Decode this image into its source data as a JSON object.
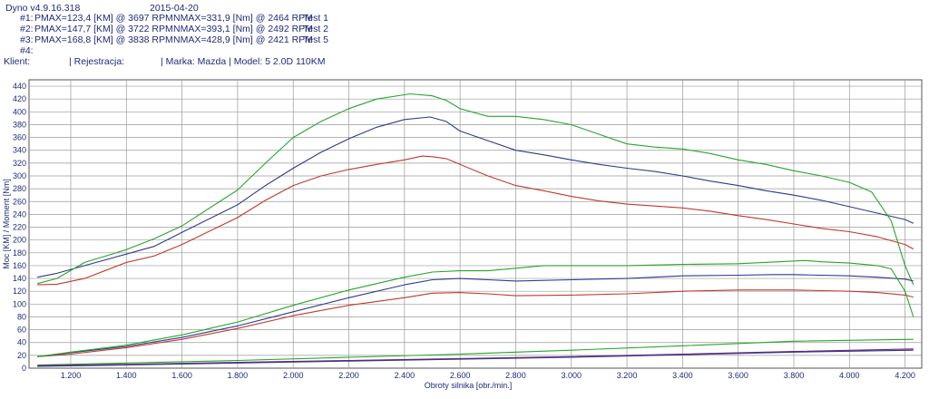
{
  "header": {
    "app": "Dyno v4.9.16.318",
    "date": "2015-04-20",
    "runs": [
      {
        "id": "#1:",
        "pmax": "PMAX=123,4 [KM] @ 3697 RPM",
        "nmax": "NMAX=331,9 [Nm] @ 2464 RPM",
        "test": "Test 1"
      },
      {
        "id": "#2:",
        "pmax": "PMAX=147,7 [KM] @ 3722 RPM",
        "nmax": "NMAX=393,1 [Nm] @ 2492 RPM",
        "test": "Test 2"
      },
      {
        "id": "#3:",
        "pmax": "PMAX=168,8 [KM] @ 3838 RPM",
        "nmax": "NMAX=428,9 [Nm] @ 2421 RPM",
        "test": "Test 5"
      },
      {
        "id": "#4:",
        "pmax": "",
        "nmax": "",
        "test": ""
      }
    ],
    "client_label": "Klient:",
    "registration_label": "| Rejestracja:",
    "make_model": "| Marka: Mazda | Model: 5 2.0D 110KM"
  },
  "chart_data": {
    "type": "line",
    "xlabel": "Obroty silnika [obr./min.]",
    "ylabel": "Moc [KM] / Moment [Nm]",
    "xlim": [
      1050,
      4260
    ],
    "ylim": [
      0,
      450
    ],
    "xticks": [
      1200,
      1400,
      1600,
      1800,
      2000,
      2200,
      2400,
      2600,
      2800,
      3000,
      3200,
      3400,
      3600,
      3800,
      4000,
      4200
    ],
    "xtick_labels": [
      "1.200",
      "1.400",
      "1.600",
      "1.800",
      "2.000",
      "2.200",
      "2.400",
      "2.600",
      "2.800",
      "3.000",
      "3.200",
      "3.400",
      "3.600",
      "3.800",
      "4.000",
      "4.200"
    ],
    "yticks": [
      0,
      20,
      40,
      60,
      80,
      100,
      120,
      140,
      160,
      180,
      200,
      220,
      240,
      260,
      280,
      300,
      320,
      340,
      360,
      380,
      400,
      420,
      440
    ],
    "grid": true,
    "colors": {
      "run1": "#c0392b",
      "run2": "#2e3a8c",
      "run3": "#27a52b",
      "loss": "#7a1f6e"
    },
    "series": [
      {
        "run": 1,
        "kind": "torque",
        "color": "#c0392b",
        "x": [
          1080,
          1150,
          1250,
          1400,
          1500,
          1600,
          1800,
          1900,
          2000,
          2100,
          2200,
          2300,
          2400,
          2464,
          2500,
          2550,
          2600,
          2700,
          2800,
          2900,
          3000,
          3100,
          3200,
          3400,
          3500,
          3600,
          3700,
          3800,
          3900,
          4000,
          4100,
          4200,
          4230
        ],
        "y": [
          130,
          131,
          140,
          165,
          175,
          193,
          235,
          262,
          285,
          300,
          310,
          318,
          325,
          331,
          330,
          327,
          318,
          300,
          285,
          277,
          268,
          261,
          256,
          250,
          245,
          238,
          232,
          225,
          218,
          213,
          205,
          193,
          186
        ]
      },
      {
        "run": 2,
        "kind": "torque",
        "color": "#2e3a8c",
        "x": [
          1080,
          1150,
          1250,
          1400,
          1500,
          1600,
          1800,
          1900,
          2000,
          2100,
          2200,
          2300,
          2400,
          2492,
          2550,
          2600,
          2700,
          2800,
          2900,
          3000,
          3100,
          3200,
          3300,
          3400,
          3500,
          3600,
          3700,
          3800,
          3900,
          4000,
          4100,
          4200,
          4230
        ],
        "y": [
          142,
          148,
          160,
          178,
          190,
          212,
          255,
          285,
          312,
          337,
          358,
          376,
          388,
          392,
          385,
          370,
          355,
          340,
          333,
          325,
          318,
          312,
          307,
          300,
          292,
          285,
          277,
          270,
          262,
          252,
          242,
          232,
          226
        ]
      },
      {
        "run": 3,
        "kind": "torque",
        "color": "#27a52b",
        "x": [
          1080,
          1150,
          1250,
          1400,
          1500,
          1600,
          1800,
          1900,
          2000,
          2100,
          2200,
          2300,
          2421,
          2500,
          2550,
          2600,
          2700,
          2800,
          2900,
          3000,
          3100,
          3200,
          3300,
          3400,
          3500,
          3600,
          3700,
          3800,
          3900,
          4000,
          4080,
          4150,
          4200,
          4230
        ],
        "y": [
          132,
          140,
          165,
          185,
          202,
          222,
          278,
          320,
          360,
          385,
          405,
          420,
          428,
          425,
          418,
          405,
          393,
          393,
          388,
          380,
          365,
          350,
          345,
          342,
          335,
          325,
          318,
          308,
          300,
          290,
          275,
          230,
          160,
          130
        ]
      },
      {
        "run": 1,
        "kind": "power",
        "color": "#c0392b",
        "x": [
          1080,
          1200,
          1400,
          1600,
          1800,
          2000,
          2200,
          2400,
          2500,
          2600,
          2700,
          2800,
          3000,
          3200,
          3400,
          3600,
          3697,
          3800,
          4000,
          4100,
          4200,
          4230
        ],
        "y": [
          18,
          22,
          32,
          45,
          62,
          82,
          98,
          110,
          117,
          118,
          116,
          113,
          114,
          116,
          120,
          122,
          122,
          122,
          120,
          118,
          114,
          111
        ]
      },
      {
        "run": 2,
        "kind": "power",
        "color": "#2e3a8c",
        "x": [
          1080,
          1200,
          1400,
          1600,
          1800,
          2000,
          2200,
          2400,
          2500,
          2600,
          2700,
          2800,
          3000,
          3200,
          3400,
          3600,
          3722,
          3800,
          4000,
          4100,
          4200,
          4230
        ],
        "y": [
          18,
          24,
          34,
          48,
          66,
          88,
          110,
          130,
          138,
          140,
          138,
          136,
          138,
          140,
          144,
          145,
          146,
          146,
          144,
          142,
          139,
          136
        ]
      },
      {
        "run": 3,
        "kind": "power",
        "color": "#27a52b",
        "x": [
          1080,
          1200,
          1400,
          1600,
          1800,
          2000,
          2200,
          2400,
          2500,
          2600,
          2700,
          2800,
          2900,
          3000,
          3200,
          3400,
          3600,
          3838,
          3900,
          4000,
          4100,
          4150,
          4200,
          4230
        ],
        "y": [
          18,
          25,
          36,
          52,
          72,
          98,
          122,
          142,
          150,
          152,
          152,
          156,
          160,
          160,
          160,
          162,
          163,
          168,
          166,
          164,
          160,
          155,
          120,
          80
        ]
      },
      {
        "run": 3,
        "kind": "loss",
        "color": "#27a52b",
        "x": [
          1080,
          1400,
          1800,
          2200,
          2600,
          3000,
          3400,
          3800,
          4230
        ],
        "y": [
          5,
          8,
          12,
          17,
          22,
          28,
          35,
          42,
          45
        ]
      },
      {
        "run": 1,
        "kind": "loss",
        "color": "#7a1f6e",
        "x": [
          1080,
          1400,
          1800,
          2200,
          2600,
          3000,
          3400,
          3800,
          4230
        ],
        "y": [
          4,
          6,
          9,
          12,
          15,
          18,
          22,
          26,
          30
        ]
      },
      {
        "run": 2,
        "kind": "loss",
        "color": "#2e3a8c",
        "x": [
          1080,
          1400,
          1800,
          2200,
          2600,
          3000,
          3400,
          3800,
          4230
        ],
        "y": [
          3,
          5,
          8,
          11,
          14,
          17,
          21,
          25,
          28
        ]
      }
    ]
  }
}
